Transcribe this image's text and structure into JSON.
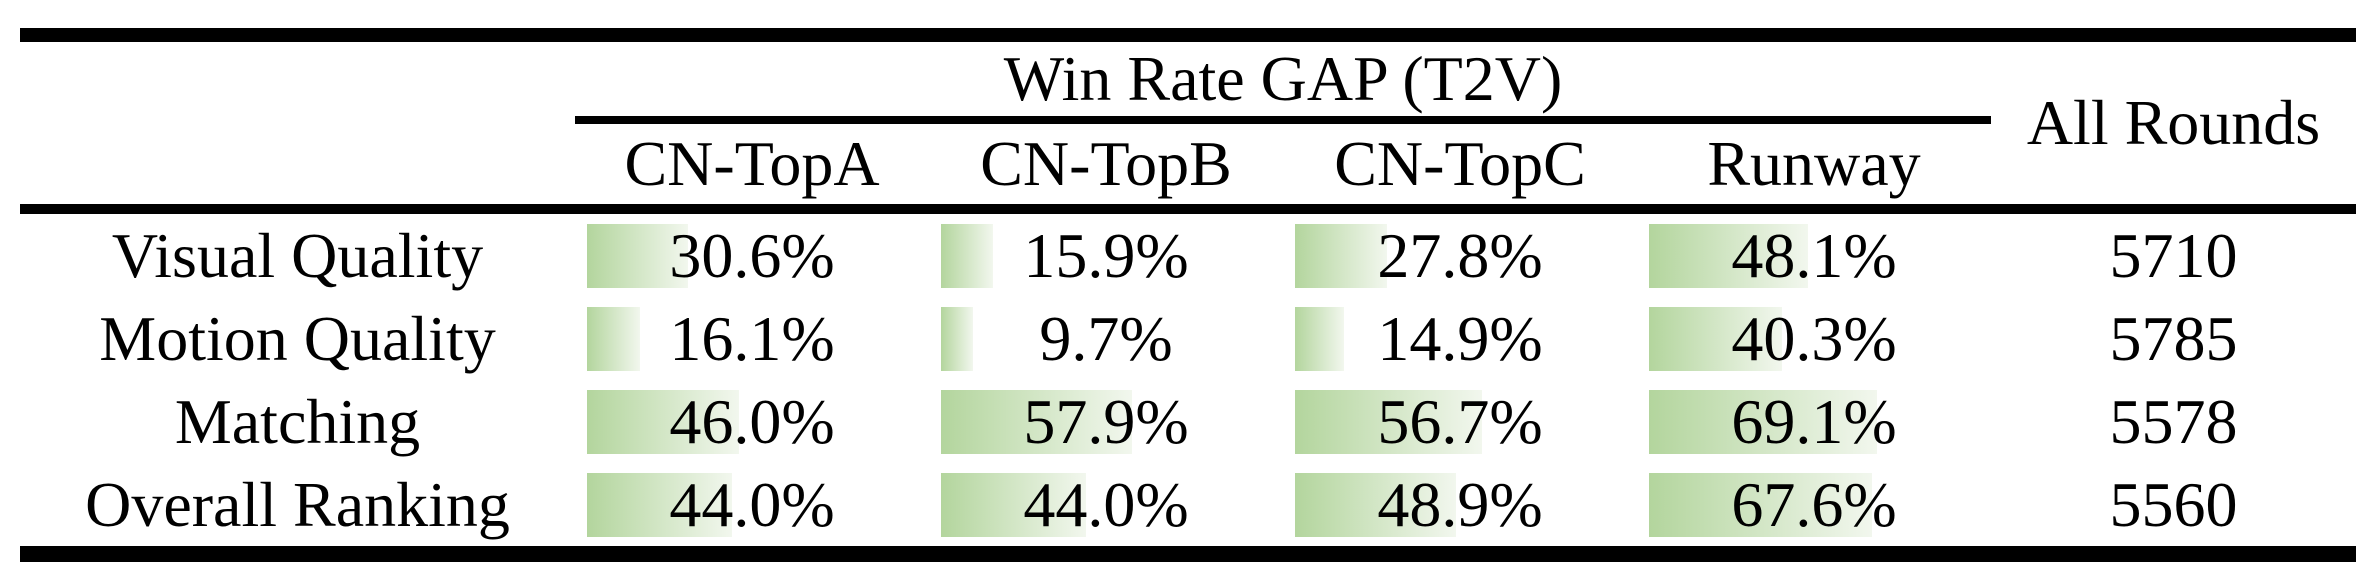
{
  "table": {
    "group_header": "Win Rate GAP (T2V)",
    "all_rounds_header": "All Rounds",
    "model_columns": [
      "CN-TopA",
      "CN-TopB",
      "CN-TopC",
      "Runway"
    ],
    "rows": [
      {
        "label": "Visual Quality",
        "gaps": [
          "30.6%",
          "15.9%",
          "27.8%",
          "48.1%"
        ],
        "rounds": "5710"
      },
      {
        "label": "Motion Quality",
        "gaps": [
          "16.1%",
          "9.7%",
          "14.9%",
          "40.3%"
        ],
        "rounds": "5785"
      },
      {
        "label": "Matching",
        "gaps": [
          "46.0%",
          "57.9%",
          "56.7%",
          "69.1%"
        ],
        "rounds": "5578"
      },
      {
        "label": "Overall Ranking",
        "gaps": [
          "44.0%",
          "44.0%",
          "48.9%",
          "67.6%"
        ],
        "rounds": "5560"
      }
    ]
  },
  "colors": {
    "bar_gradient_start": "#b3d59d",
    "bar_gradient_end": "#f2f7ee",
    "rule_color": "#000000",
    "text_color": "#000000"
  },
  "chart_data": {
    "type": "table",
    "title": "Win Rate GAP (T2V)",
    "columns": [
      "CN-TopA",
      "CN-TopB",
      "CN-TopC",
      "Runway",
      "All Rounds"
    ],
    "categories": [
      "Visual Quality",
      "Motion Quality",
      "Matching",
      "Overall Ranking"
    ],
    "series": [
      {
        "name": "CN-TopA",
        "values": [
          30.6,
          16.1,
          46.0,
          44.0
        ],
        "unit": "%"
      },
      {
        "name": "CN-TopB",
        "values": [
          15.9,
          9.7,
          57.9,
          44.0
        ],
        "unit": "%"
      },
      {
        "name": "CN-TopC",
        "values": [
          27.8,
          14.9,
          56.7,
          48.9
        ],
        "unit": "%"
      },
      {
        "name": "Runway",
        "values": [
          48.1,
          40.3,
          69.1,
          67.6
        ],
        "unit": "%"
      },
      {
        "name": "All Rounds",
        "values": [
          5710,
          5785,
          5578,
          5560
        ],
        "unit": "count"
      }
    ],
    "layout_hints": {
      "bars": "horizontal green gradient bars behind percent text, left-aligned, width proportional to value"
    }
  }
}
